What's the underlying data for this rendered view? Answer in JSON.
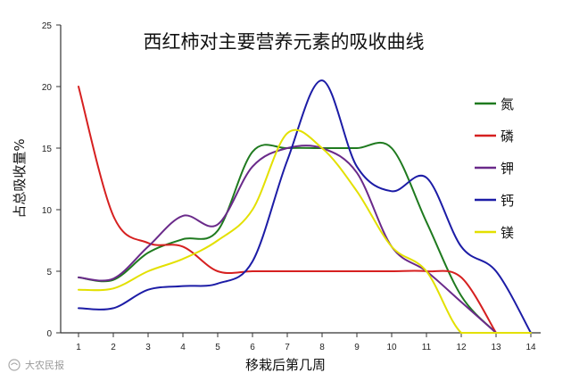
{
  "chart_data": {
    "type": "line",
    "title": "西红柿对主要营养元素的吸收曲线",
    "xlabel": "移栽后第几周",
    "ylabel": "占总吸收量%",
    "x": [
      1,
      2,
      3,
      4,
      5,
      6,
      7,
      8,
      9,
      10,
      11,
      12,
      13,
      14
    ],
    "xlim": [
      0.5,
      14.5
    ],
    "ylim": [
      0,
      25
    ],
    "yticks": [
      0,
      5,
      10,
      15,
      20,
      25
    ],
    "grid": false,
    "legend_position": "right",
    "series": [
      {
        "name": "氮",
        "color": "#1f7a1f",
        "points": [
          [
            1,
            4.5
          ],
          [
            2,
            4.3
          ],
          [
            3,
            6.5
          ],
          [
            4,
            7.6
          ],
          [
            5,
            8.3
          ],
          [
            6,
            14.7
          ],
          [
            7,
            15.0
          ],
          [
            8,
            15.0
          ],
          [
            9,
            15.0
          ],
          [
            10,
            15.0
          ],
          [
            11,
            9.0
          ],
          [
            12,
            3.0
          ],
          [
            13,
            0.0
          ]
        ]
      },
      {
        "name": "磷",
        "color": "#d62020",
        "points": [
          [
            1,
            20.0
          ],
          [
            2,
            9.5
          ],
          [
            3,
            7.3
          ],
          [
            4,
            7.0
          ],
          [
            5,
            5.0
          ],
          [
            6,
            5.0
          ],
          [
            7,
            5.0
          ],
          [
            8,
            5.0
          ],
          [
            9,
            5.0
          ],
          [
            10,
            5.0
          ],
          [
            11,
            5.0
          ],
          [
            12,
            4.5
          ],
          [
            13,
            0.0
          ]
        ]
      },
      {
        "name": "钾",
        "color": "#6a2a8a",
        "points": [
          [
            1,
            4.5
          ],
          [
            2,
            4.4
          ],
          [
            3,
            7.0
          ],
          [
            4,
            9.5
          ],
          [
            5,
            8.8
          ],
          [
            6,
            13.5
          ],
          [
            7,
            15.0
          ],
          [
            8,
            15.0
          ],
          [
            9,
            13.0
          ],
          [
            10,
            7.0
          ],
          [
            11,
            5.0
          ],
          [
            12,
            2.5
          ],
          [
            13,
            0.0
          ]
        ]
      },
      {
        "name": "钙",
        "color": "#1c1ca6",
        "points": [
          [
            1,
            2.0
          ],
          [
            2,
            2.0
          ],
          [
            3,
            3.5
          ],
          [
            4,
            3.8
          ],
          [
            5,
            4.0
          ],
          [
            6,
            5.8
          ],
          [
            7,
            14.0
          ],
          [
            8,
            20.5
          ],
          [
            9,
            13.5
          ],
          [
            10,
            11.5
          ],
          [
            11,
            12.6
          ],
          [
            12,
            7.0
          ],
          [
            13,
            5.0
          ],
          [
            14,
            0.0
          ]
        ]
      },
      {
        "name": "镁",
        "color": "#e3e000",
        "points": [
          [
            1,
            3.5
          ],
          [
            2,
            3.6
          ],
          [
            3,
            5.0
          ],
          [
            4,
            6.0
          ],
          [
            5,
            7.5
          ],
          [
            6,
            10.0
          ],
          [
            7,
            16.2
          ],
          [
            8,
            15.0
          ],
          [
            9,
            11.5
          ],
          [
            10,
            7.0
          ],
          [
            11,
            5.0
          ],
          [
            12,
            0.0
          ],
          [
            13,
            0.0
          ],
          [
            14,
            0.0
          ]
        ]
      }
    ]
  },
  "watermark": "大农民报"
}
